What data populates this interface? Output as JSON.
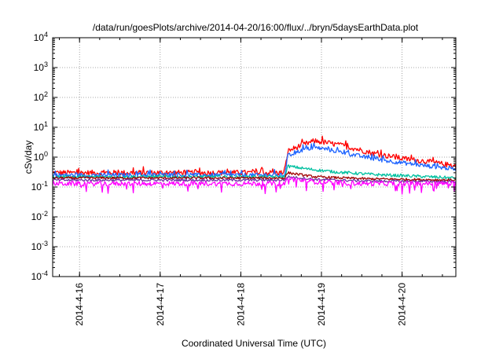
{
  "chart_data": {
    "type": "line",
    "title": "/data/run/goesPlots/archive/2014-04-20/16:00/flux/../bryn/5daysEarthData.plot",
    "xlabel": "Coordinated Universal Time (UTC)",
    "ylabel": "cSv/day",
    "yscale": "log",
    "ylim": [
      0.0001,
      10000
    ],
    "y_ticks": [
      {
        "base": "10",
        "exp": "-4",
        "value": 0.0001
      },
      {
        "base": "10",
        "exp": "-3",
        "value": 0.001
      },
      {
        "base": "10",
        "exp": "-2",
        "value": 0.01
      },
      {
        "base": "10",
        "exp": "-1",
        "value": 0.1
      },
      {
        "base": "10",
        "exp": "0",
        "value": 1
      },
      {
        "base": "10",
        "exp": "1",
        "value": 10
      },
      {
        "base": "10",
        "exp": "2",
        "value": 100
      },
      {
        "base": "10",
        "exp": "3",
        "value": 1000
      },
      {
        "base": "10",
        "exp": "4",
        "value": 10000
      }
    ],
    "xlim": [
      "2014-04-15T16:00",
      "2014-04-20T16:00"
    ],
    "x_ticks": [
      {
        "label": "2014-4-16",
        "value": "2014-04-16T00:00"
      },
      {
        "label": "2014-4-17",
        "value": "2014-04-17T00:00"
      },
      {
        "label": "2014-4-18",
        "value": "2014-04-18T00:00"
      },
      {
        "label": "2014-4-19",
        "value": "2014-04-19T00:00"
      },
      {
        "label": "2014-4-20",
        "value": "2014-04-20T00:00"
      }
    ],
    "grid": true,
    "series": [
      {
        "color": "#ff0000",
        "noise": 0.09,
        "spikes": "up",
        "points": [
          [
            "2014-04-15T16:00",
            0.3
          ],
          [
            "2014-04-18T13:00",
            0.3
          ],
          [
            "2014-04-18T14:00",
            1.6
          ],
          [
            "2014-04-18T18:00",
            2.5
          ],
          [
            "2014-04-18T22:00",
            3.5
          ],
          [
            "2014-04-19T02:00",
            3.0
          ],
          [
            "2014-04-19T08:00",
            2.2
          ],
          [
            "2014-04-19T16:00",
            1.3
          ],
          [
            "2014-04-20T00:00",
            0.9
          ],
          [
            "2014-04-20T08:00",
            0.7
          ],
          [
            "2014-04-20T16:00",
            0.5
          ]
        ]
      },
      {
        "color": "#1e64ff",
        "noise": 0.07,
        "spikes": "up",
        "points": [
          [
            "2014-04-15T16:00",
            0.25
          ],
          [
            "2014-04-18T13:00",
            0.25
          ],
          [
            "2014-04-18T14:00",
            1.1
          ],
          [
            "2014-04-18T18:00",
            1.7
          ],
          [
            "2014-04-18T22:00",
            2.1
          ],
          [
            "2014-04-19T02:00",
            1.8
          ],
          [
            "2014-04-19T08:00",
            1.3
          ],
          [
            "2014-04-19T16:00",
            0.85
          ],
          [
            "2014-04-20T00:00",
            0.65
          ],
          [
            "2014-04-20T08:00",
            0.5
          ],
          [
            "2014-04-20T16:00",
            0.4
          ]
        ]
      },
      {
        "color": "#00c0a0",
        "noise": 0.05,
        "spikes": "none",
        "points": [
          [
            "2014-04-15T16:00",
            0.22
          ],
          [
            "2014-04-18T13:00",
            0.22
          ],
          [
            "2014-04-18T14:00",
            0.5
          ],
          [
            "2014-04-18T20:00",
            0.4
          ],
          [
            "2014-04-19T04:00",
            0.32
          ],
          [
            "2014-04-19T16:00",
            0.26
          ],
          [
            "2014-04-20T04:00",
            0.23
          ],
          [
            "2014-04-20T16:00",
            0.2
          ]
        ]
      },
      {
        "color": "#a00000",
        "noise": 0.04,
        "spikes": "none",
        "points": [
          [
            "2014-04-15T16:00",
            0.2
          ],
          [
            "2014-04-18T13:00",
            0.2
          ],
          [
            "2014-04-18T14:00",
            0.3
          ],
          [
            "2014-04-18T22:00",
            0.22
          ],
          [
            "2014-04-19T12:00",
            0.19
          ],
          [
            "2014-04-20T16:00",
            0.17
          ]
        ]
      },
      {
        "color": "#7030a0",
        "noise": 0.04,
        "spikes": "none",
        "points": [
          [
            "2014-04-15T16:00",
            0.17
          ],
          [
            "2014-04-18T13:00",
            0.17
          ],
          [
            "2014-04-18T14:00",
            0.22
          ],
          [
            "2014-04-18T22:00",
            0.18
          ],
          [
            "2014-04-19T12:00",
            0.16
          ],
          [
            "2014-04-20T16:00",
            0.15
          ]
        ]
      },
      {
        "color": "#ff00ff",
        "noise": 0.08,
        "spikes": "down",
        "points": [
          [
            "2014-04-15T16:00",
            0.13
          ],
          [
            "2014-04-18T13:00",
            0.13
          ],
          [
            "2014-04-18T14:00",
            0.19
          ],
          [
            "2014-04-18T22:00",
            0.15
          ],
          [
            "2014-04-19T12:00",
            0.13
          ],
          [
            "2014-04-20T16:00",
            0.13
          ]
        ]
      }
    ]
  }
}
